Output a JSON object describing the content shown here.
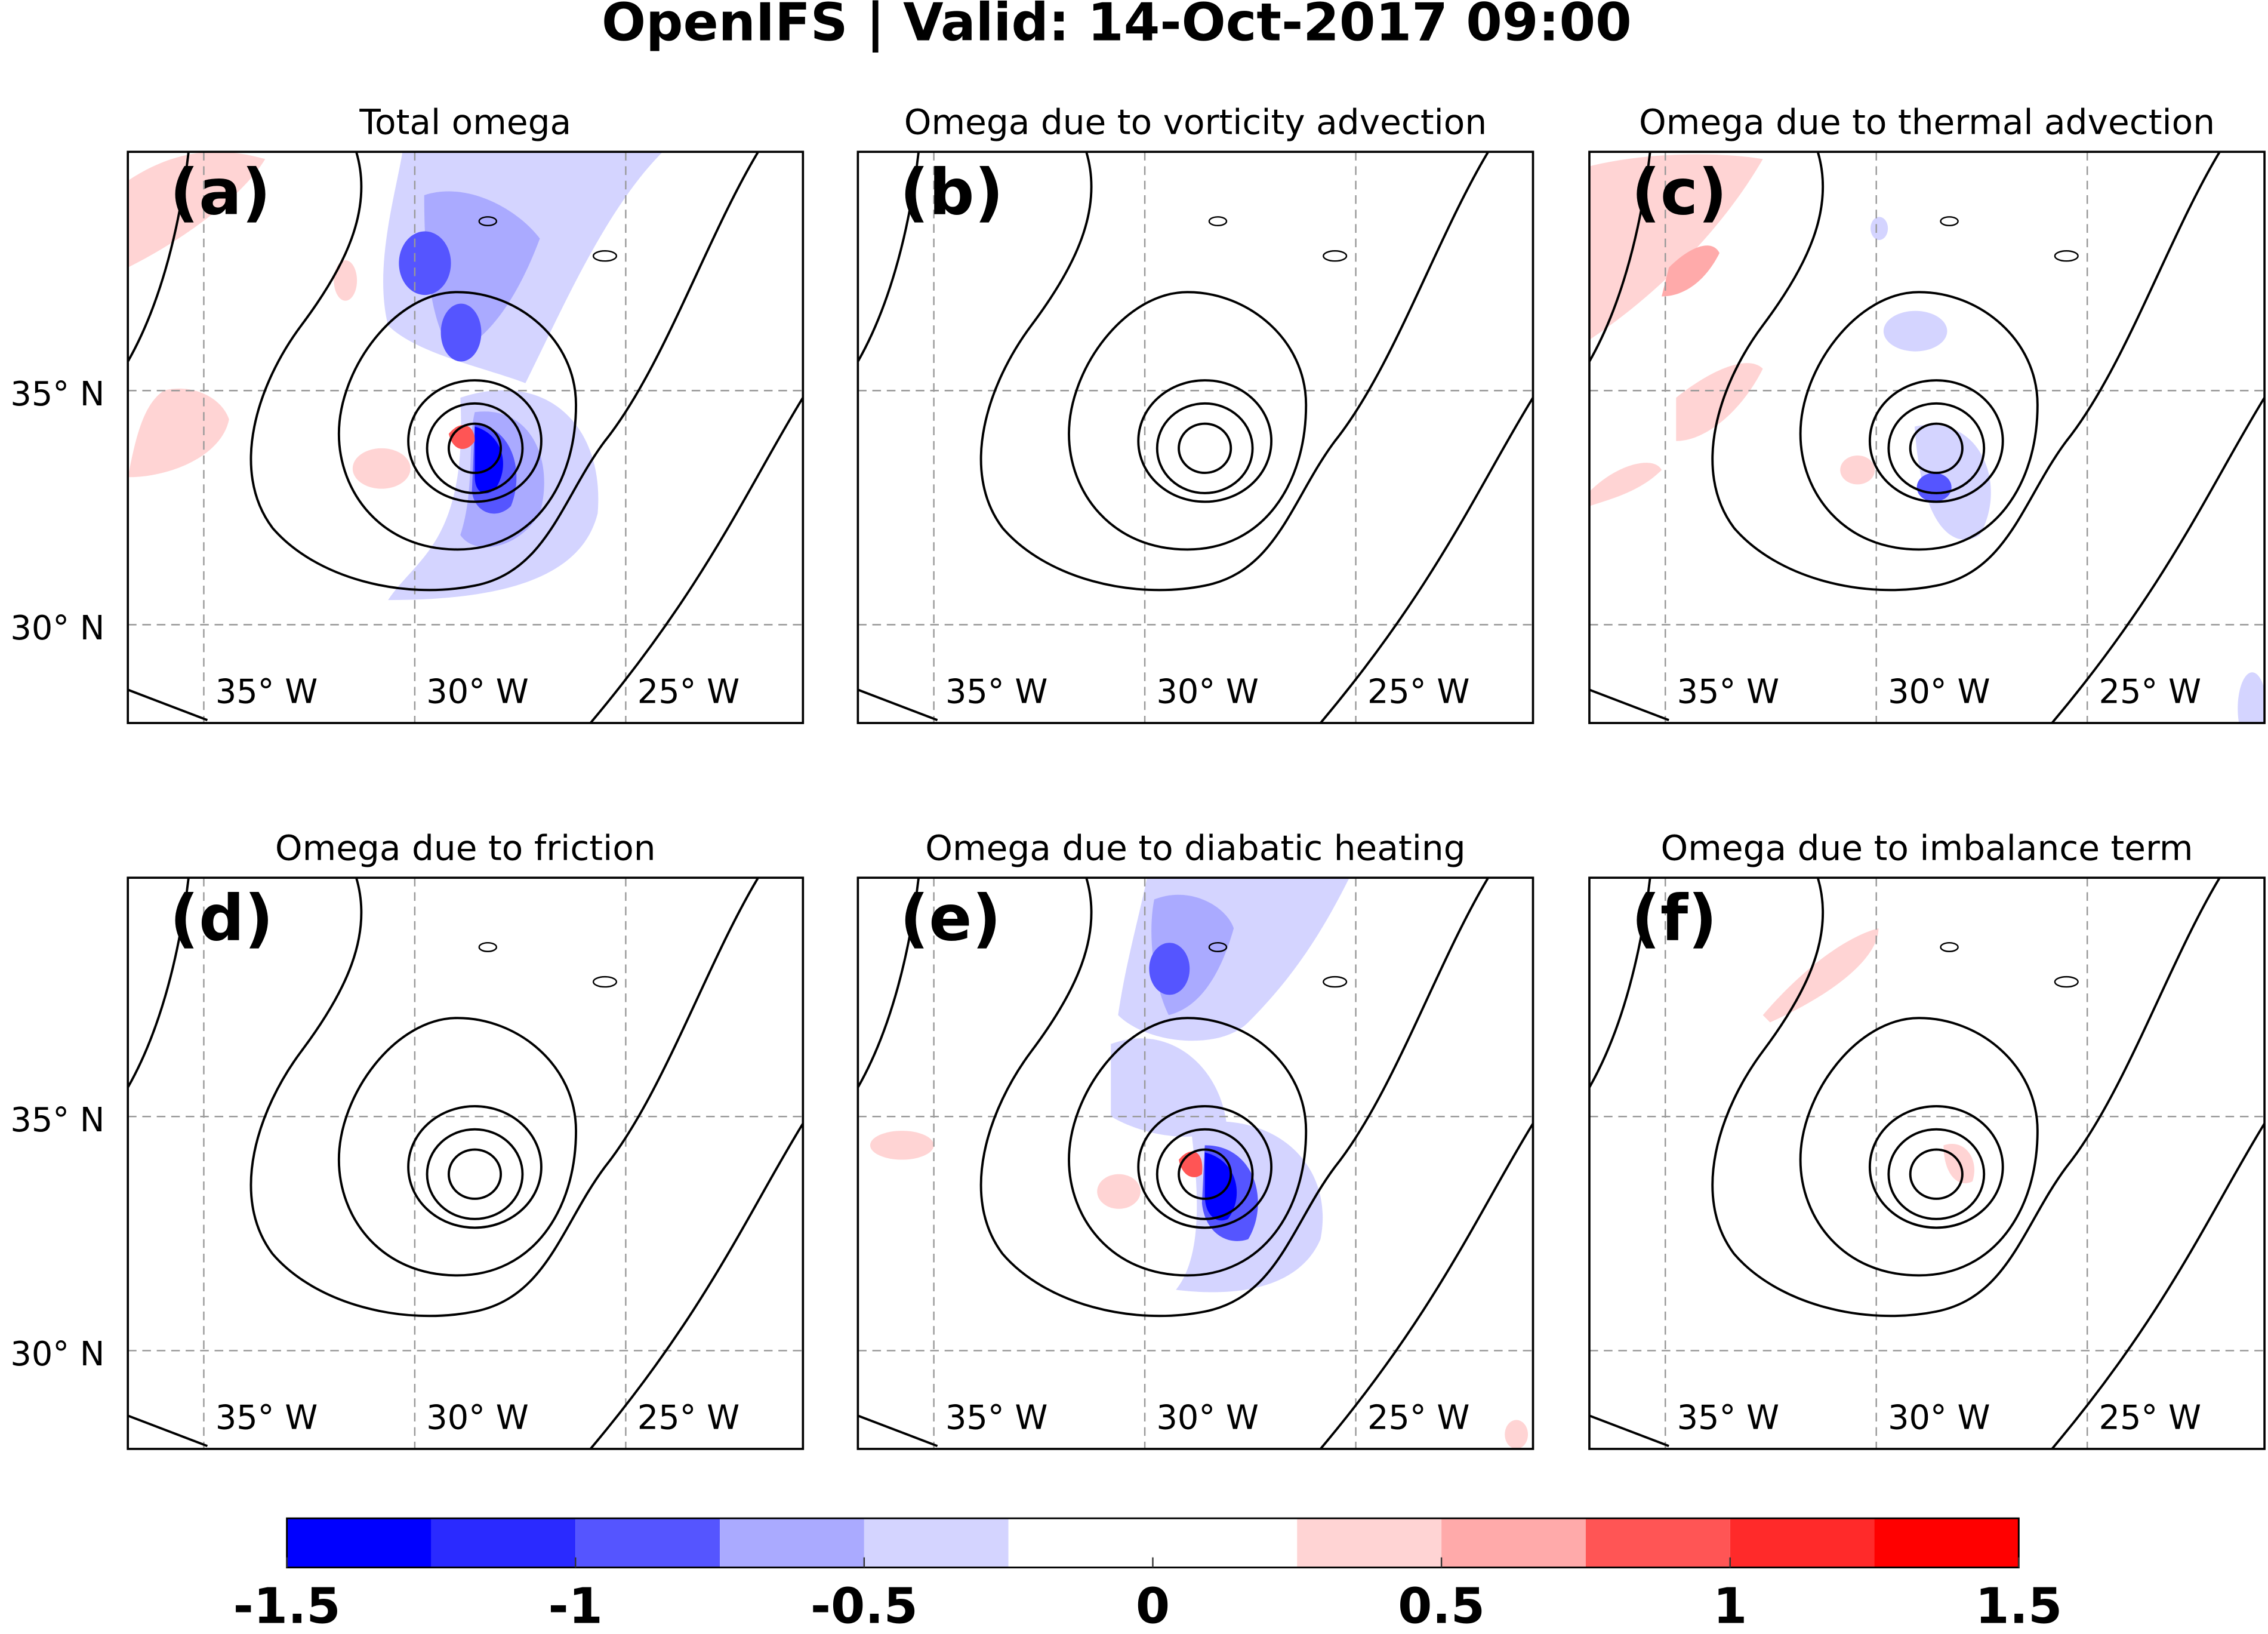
{
  "chart_data": {
    "type": "map",
    "title": "OpenIFS | Valid: 14-Oct-2017 09:00",
    "xlim": [
      -36.8,
      -20.8
    ],
    "ylim": [
      27.9,
      40.1
    ],
    "xticks": [
      {
        "value": -35,
        "label": "35° W"
      },
      {
        "value": -30,
        "label": "30° W"
      },
      {
        "value": -25,
        "label": "25° W"
      }
    ],
    "yticks": [
      {
        "value": 30,
        "label": "30° N"
      },
      {
        "value": 35,
        "label": "35° N"
      }
    ],
    "grid": true,
    "panels": [
      {
        "label": "(a)",
        "title": "Total omega"
      },
      {
        "label": "(b)",
        "title": "Omega due to vorticity advection"
      },
      {
        "label": "(c)",
        "title": "Omega due to thermal advection"
      },
      {
        "label": "(d)",
        "title": "Omega due to friction"
      },
      {
        "label": "(e)",
        "title": "Omega due to diabatic heating"
      },
      {
        "label": "(f)",
        "title": "Omega due to imbalance term"
      }
    ],
    "colorbar": {
      "bins": [
        -1.5,
        -1.25,
        -1,
        -0.75,
        -0.5,
        -0.25,
        0,
        0.25,
        0.5,
        0.75,
        1,
        1.25,
        1.5
      ],
      "colors": [
        "#0000ff",
        "#2a2aff",
        "#5555ff",
        "#aaaaff",
        "#d4d4ff",
        "#ffffff",
        "#ffffff",
        "#ffd4d4",
        "#ffaaaa",
        "#ff5555",
        "#ff2a2a",
        "#ff0000"
      ],
      "ticks": [
        -1.5,
        -1,
        -0.5,
        0,
        0.5,
        1,
        1.5
      ]
    }
  }
}
